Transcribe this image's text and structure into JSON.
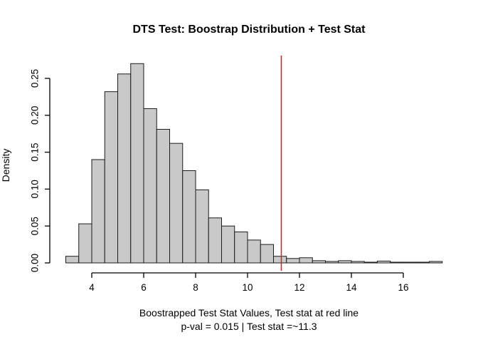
{
  "chart_data": {
    "type": "bar",
    "subtype": "histogram",
    "title": "DTS Test: Boostrap Distribution + Test Stat",
    "ylabel": "Density",
    "xlabel": "Boostrapped Test Stat Values, Test stat at red line",
    "sublabel": "p-val = 0.015 | Test stat =~11.3",
    "bin_start": 3.0,
    "bin_width": 0.5,
    "densities": [
      0.009,
      0.053,
      0.14,
      0.232,
      0.256,
      0.27,
      0.209,
      0.181,
      0.162,
      0.125,
      0.099,
      0.061,
      0.05,
      0.042,
      0.031,
      0.025,
      0.009,
      0.006,
      0.007,
      0.003,
      0.002,
      0.003,
      0.002,
      0.001,
      0.0025,
      0.001,
      0.001,
      0.001,
      0.002
    ],
    "test_stat_line": {
      "x": 11.3,
      "color": "#cc2936"
    },
    "p_value": 0.015,
    "x_ticks": [
      4,
      6,
      8,
      10,
      12,
      14,
      16
    ],
    "y_ticks": [
      0,
      0.05,
      0.1,
      0.15,
      0.2,
      0.25
    ],
    "y_tick_labels": [
      "0.00",
      "0.05",
      "0.10",
      "0.15",
      "0.20",
      "0.25"
    ],
    "xlim": [
      3.0,
      17.5
    ],
    "ylim": [
      0,
      0.275
    ],
    "grid": false,
    "legend": "none",
    "colors": {
      "bar_fill": "#c9c9c9",
      "bar_stroke": "#1c1c1c",
      "axis": "#000000",
      "background": "#ffffff"
    }
  }
}
